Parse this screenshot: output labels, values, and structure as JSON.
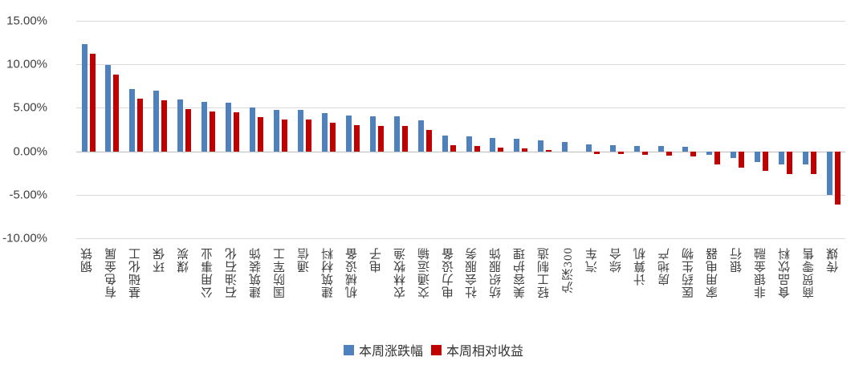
{
  "chart_data": {
    "type": "bar",
    "title": "",
    "xlabel": "",
    "ylabel": "",
    "ylim": [
      -10,
      15
    ],
    "grid": true,
    "legend_position": "bottom",
    "y_ticks": [
      "15.00%",
      "10.00%",
      "5.00%",
      "0.00%",
      "-5.00%",
      "-10.00%"
    ],
    "y_tick_values": [
      15,
      10,
      5,
      0,
      -5,
      -10
    ],
    "categories": [
      "钢铁",
      "有色金属",
      "基础化工",
      "环保",
      "煤炭",
      "公用事业",
      "石油石化",
      "建筑装饰",
      "国防军工",
      "通信",
      "建筑材料",
      "机械设备",
      "电子",
      "农林牧渔",
      "交通运输",
      "电力设备",
      "社会服务",
      "纺织服饰",
      "美容护理",
      "轻工制造",
      "沪深300",
      "汽车",
      "综合",
      "计算机",
      "房地产",
      "医药生物",
      "家用电器",
      "银行",
      "非银金融",
      "食品饮料",
      "商贸零售",
      "传媒"
    ],
    "series": [
      {
        "name": "本周涨跌幅",
        "color": "#4F81BD",
        "values": [
          12.3,
          9.9,
          7.2,
          7.0,
          6.0,
          5.7,
          5.6,
          5.0,
          4.8,
          4.75,
          4.4,
          4.1,
          4.05,
          4.0,
          3.6,
          1.85,
          1.7,
          1.5,
          1.45,
          1.25,
          1.1,
          0.8,
          0.75,
          0.65,
          0.6,
          0.5,
          -0.4,
          -0.8,
          -1.2,
          -1.5,
          -1.55,
          -5.0
        ]
      },
      {
        "name": "本周相对收益",
        "color": "#C00000",
        "values": [
          11.2,
          8.8,
          6.1,
          5.9,
          4.9,
          4.6,
          4.5,
          3.9,
          3.7,
          3.65,
          3.3,
          3.0,
          2.95,
          2.9,
          2.5,
          0.75,
          0.6,
          0.4,
          0.35,
          0.15,
          0.0,
          -0.3,
          -0.35,
          -0.45,
          -0.5,
          -0.6,
          -1.5,
          -1.9,
          -2.3,
          -2.6,
          -2.65,
          -6.1
        ]
      }
    ],
    "colors": {
      "gridline": "#d9d9d9",
      "zero_line": "#bfbfbf",
      "tick_text": "#404040"
    }
  },
  "legend": {
    "items": [
      {
        "label": "本周涨跌幅",
        "color": "#4F81BD"
      },
      {
        "label": "本周相对收益",
        "color": "#C00000"
      }
    ]
  }
}
